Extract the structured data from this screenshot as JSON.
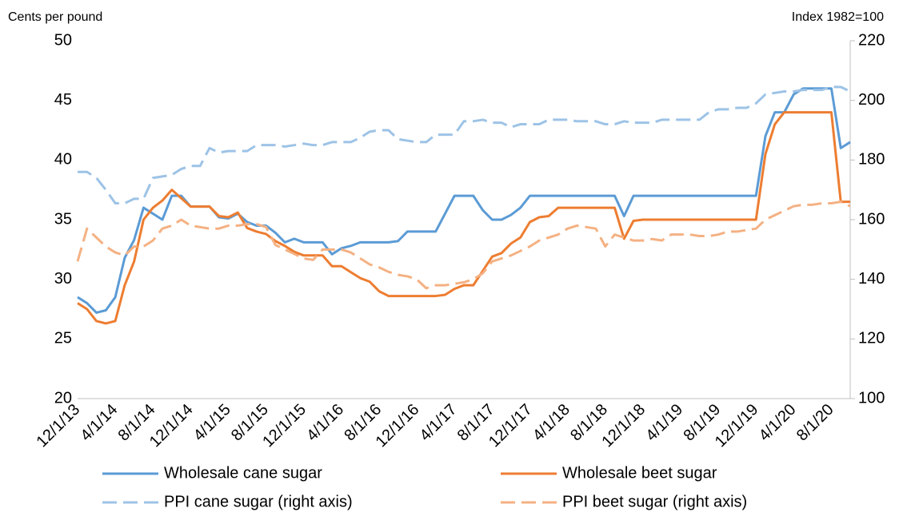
{
  "chart_data": {
    "type": "line",
    "y_axis_label": "Cents per pound",
    "y2_axis_label": "Index 1982=100",
    "categories": [
      "12/1/13",
      null,
      null,
      null,
      "4/1/14",
      null,
      null,
      null,
      "8/1/14",
      null,
      null,
      null,
      "12/1/14",
      null,
      null,
      null,
      "4/1/15",
      null,
      null,
      null,
      "8/1/15",
      null,
      null,
      null,
      "12/1/15",
      null,
      null,
      null,
      "4/1/16",
      null,
      null,
      null,
      "8/1/16",
      null,
      null,
      null,
      "12/1/16",
      null,
      null,
      null,
      "4/1/17",
      null,
      null,
      null,
      "8/1/17",
      null,
      null,
      null,
      "12/1/17",
      null,
      null,
      null,
      "4/1/18",
      null,
      null,
      null,
      "8/1/18",
      null,
      null,
      null,
      "12/1/18",
      null,
      null,
      null,
      "4/1/19",
      null,
      null,
      null,
      "8/1/19",
      null,
      null,
      null,
      "12/1/19",
      null,
      null,
      null,
      "4/1/20",
      null,
      null,
      null,
      "8/1/20",
      null,
      null
    ],
    "ylim": [
      20,
      50
    ],
    "yticks": [
      20,
      25,
      30,
      35,
      40,
      45,
      50
    ],
    "y2lim": [
      100,
      220
    ],
    "y2ticks": [
      100,
      120,
      140,
      160,
      180,
      200,
      220
    ],
    "grid": false,
    "legend": "bottom",
    "series": [
      {
        "name": "Wholesale cane sugar",
        "color": "#5b9bd5",
        "line_style": "solid",
        "values": [
          28.5,
          28,
          27.2,
          27.4,
          28.5,
          31.8,
          33.3,
          36,
          35.5,
          35,
          37,
          37,
          36.1,
          36.1,
          36.1,
          35.2,
          35.1,
          35.5,
          34.8,
          34.5,
          34.5,
          33.9,
          33.1,
          33.4,
          33.1,
          33.1,
          33.1,
          32.1,
          32.6,
          32.8,
          33.1,
          33.1,
          33.1,
          33.1,
          33.2,
          34,
          34,
          34,
          34,
          35.5,
          37,
          37,
          37,
          35.8,
          35,
          35,
          35.4,
          36,
          37,
          37,
          37,
          37,
          37,
          37,
          37,
          37,
          37,
          37,
          35.3,
          37,
          37,
          37,
          37,
          37,
          37,
          37,
          37,
          37,
          37,
          37,
          37,
          37,
          37,
          42,
          44,
          44,
          45.5,
          46,
          46,
          46,
          46,
          41,
          41.5
        ]
      },
      {
        "name": "Wholesale beet sugar",
        "color": "#ed7d31",
        "line_style": "solid",
        "values": [
          28,
          27.5,
          26.5,
          26.3,
          26.5,
          29.5,
          31.5,
          35,
          36,
          36.6,
          37.5,
          36.8,
          36.1,
          36.1,
          36.1,
          35.3,
          35.2,
          35.6,
          34.3,
          34,
          33.8,
          33.2,
          32.8,
          32.3,
          32,
          32,
          32,
          31.1,
          31.1,
          30.6,
          30.1,
          29.8,
          29,
          28.6,
          28.6,
          28.6,
          28.6,
          28.6,
          28.6,
          28.7,
          29.2,
          29.5,
          29.5,
          30.7,
          31.9,
          32.2,
          33,
          33.5,
          34.8,
          35.2,
          35.3,
          36,
          36,
          36,
          36,
          36,
          36,
          36,
          33.4,
          34.9,
          35,
          35,
          35,
          35,
          35,
          35,
          35,
          35,
          35,
          35,
          35,
          35,
          35,
          40.5,
          43,
          44,
          44,
          44,
          44,
          44,
          44,
          36.5,
          36.5
        ]
      },
      {
        "name": "PPI cane sugar (right axis)",
        "color": "#9dc3e6",
        "line_style": "dashed",
        "axis": "y2",
        "values": [
          176,
          176,
          174,
          170,
          165.5,
          165.5,
          167,
          167,
          174,
          174.5,
          175,
          177,
          178,
          178,
          184,
          182.5,
          183,
          183,
          183,
          185,
          185,
          185,
          184.5,
          185,
          185.5,
          185,
          185,
          186,
          186,
          186,
          187.5,
          189.5,
          190,
          190,
          187,
          186.5,
          186,
          186,
          188.5,
          188.5,
          188.5,
          193,
          193,
          193.5,
          192.5,
          192.5,
          191,
          192,
          192,
          192,
          193.5,
          193.5,
          193.5,
          193,
          193,
          193,
          192,
          192,
          193,
          192.5,
          192.5,
          192.5,
          193.5,
          193.5,
          193.5,
          193.5,
          193.5,
          196,
          197,
          197,
          197.5,
          197.5,
          199,
          202,
          202.5,
          203,
          203,
          203.5,
          203.5,
          203.5,
          204.5,
          204.5,
          203
        ]
      },
      {
        "name": "PPI beet sugar (right axis)",
        "color": "#f4b183",
        "line_style": "dashed",
        "axis": "y2",
        "values": [
          146,
          157,
          154,
          151,
          149,
          148,
          151,
          151,
          153,
          157,
          158,
          160,
          158,
          157.5,
          157,
          157,
          158,
          158,
          158.5,
          158.5,
          157.5,
          151.5,
          150,
          148.5,
          147,
          146.5,
          150,
          150,
          150,
          149,
          147,
          145,
          144,
          142.5,
          141.5,
          141,
          140,
          137,
          138,
          138,
          138.5,
          139,
          140,
          142,
          146,
          147,
          148,
          149.5,
          151,
          153,
          154,
          155,
          157,
          158,
          157.5,
          157,
          151,
          155,
          154,
          153,
          153,
          153.5,
          153,
          155,
          155,
          155,
          154.5,
          154.5,
          155,
          156,
          156,
          156.5,
          157,
          160,
          161.5,
          163,
          164.5,
          165,
          165,
          165.5,
          165.5,
          166,
          164.5
        ]
      }
    ]
  }
}
